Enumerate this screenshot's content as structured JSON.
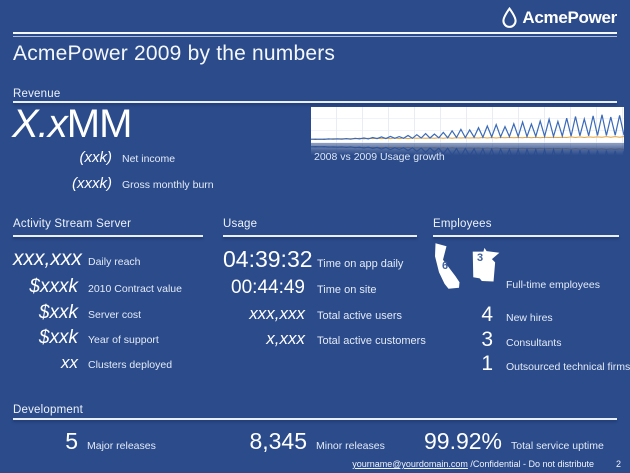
{
  "theme": {
    "background": "#2b4b8b",
    "text": "#ffffff",
    "label_text": "#e4ebf7",
    "rule": "#e9eff9",
    "state_number_blue": "#41619f"
  },
  "logo": {
    "name": "AcmePower"
  },
  "title": "AcmePower 2009 by the numbers",
  "revenue": {
    "heading": "Revenue",
    "big_value": {
      "italic_part": "X.x",
      "suffix": "MM"
    },
    "rows": [
      {
        "value": "(xxk)",
        "label": "Net income"
      },
      {
        "value": "(xxxk)",
        "label": "Gross monthly burn"
      }
    ],
    "chart_caption": "2008 vs 2009 Usage growth"
  },
  "activity": {
    "heading": "Activity Stream Server",
    "rows": [
      {
        "value": "xxx,xxx",
        "label": "Daily reach"
      },
      {
        "value": "$xxxk",
        "label": "2010 Contract value"
      },
      {
        "value": "$xxk",
        "label": "Server cost"
      },
      {
        "value": "$xxk",
        "label": "Year of support"
      },
      {
        "value": "xx",
        "label": "Clusters deployed"
      }
    ]
  },
  "usage": {
    "heading": "Usage",
    "rows": [
      {
        "value": "04:39:32",
        "label": "Time on app daily"
      },
      {
        "value": "00:44:49",
        "label": "Time on site"
      },
      {
        "value": "xxx,xxx",
        "label": "Total active users"
      },
      {
        "value": "x,xxx",
        "label": "Total active customers"
      }
    ]
  },
  "employees": {
    "heading": "Employees",
    "states": [
      {
        "state": "California",
        "count": "6"
      },
      {
        "state": "Minnesota",
        "count": "3"
      }
    ],
    "states_label": "Full-time employees",
    "rows": [
      {
        "value": "4",
        "label": "New hires"
      },
      {
        "value": "3",
        "label": "Consultants"
      },
      {
        "value": "1",
        "label": "Outsourced technical firms"
      }
    ]
  },
  "development": {
    "heading": "Development",
    "stats": [
      {
        "value": "5",
        "label": "Major releases"
      },
      {
        "value": "8,345",
        "label": "Minor releases"
      },
      {
        "value": "99.92%",
        "label": "Total service uptime"
      }
    ]
  },
  "footer": {
    "email": "yourname@yourdomain.com",
    "confidential": " /Confidential - Do not distribute",
    "page": "2"
  },
  "chart_data": {
    "type": "line",
    "title": "2008 vs 2009 Usage growth",
    "xlabel": "",
    "ylabel": "",
    "axes_visible": false,
    "legend_position": "none",
    "grid": true,
    "ylim": [
      0,
      100
    ],
    "x_description": "time, weekly oscillation across 2008-2009",
    "series": [
      {
        "name": "2009 usage",
        "color": "#3a6ab8",
        "values": [
          3,
          2,
          3,
          2,
          4,
          3,
          4,
          3,
          5,
          3,
          6,
          4,
          7,
          4,
          9,
          5,
          11,
          5,
          13,
          6,
          12,
          6,
          16,
          6,
          19,
          7,
          23,
          7,
          21,
          8,
          27,
          8,
          33,
          9,
          38,
          9,
          36,
          10,
          44,
          10,
          50,
          11,
          55,
          11,
          48,
          12,
          58,
          12,
          64,
          12,
          57,
          13,
          68,
          13,
          74,
          13,
          66,
          14,
          78,
          14,
          84,
          15,
          75,
          15,
          86,
          16,
          90,
          16,
          82,
          17,
          88,
          17
        ]
      },
      {
        "name": "2008 usage",
        "color": "#e5a23c",
        "values": [
          3,
          4,
          3,
          4,
          3,
          5,
          4,
          5,
          4,
          5,
          4,
          6,
          4,
          6,
          5,
          6,
          5,
          6,
          5,
          7,
          5,
          7,
          5,
          7,
          6,
          7,
          6,
          7,
          6,
          8,
          6,
          8,
          6,
          8,
          7,
          8,
          7,
          8,
          7,
          9,
          7,
          9,
          7,
          9,
          8,
          9,
          8,
          9,
          8,
          10,
          8,
          10,
          8,
          10,
          9,
          10,
          9,
          10,
          9,
          11,
          9,
          11,
          9,
          11,
          10,
          11,
          10,
          12,
          10,
          12,
          10,
          12
        ]
      }
    ]
  }
}
